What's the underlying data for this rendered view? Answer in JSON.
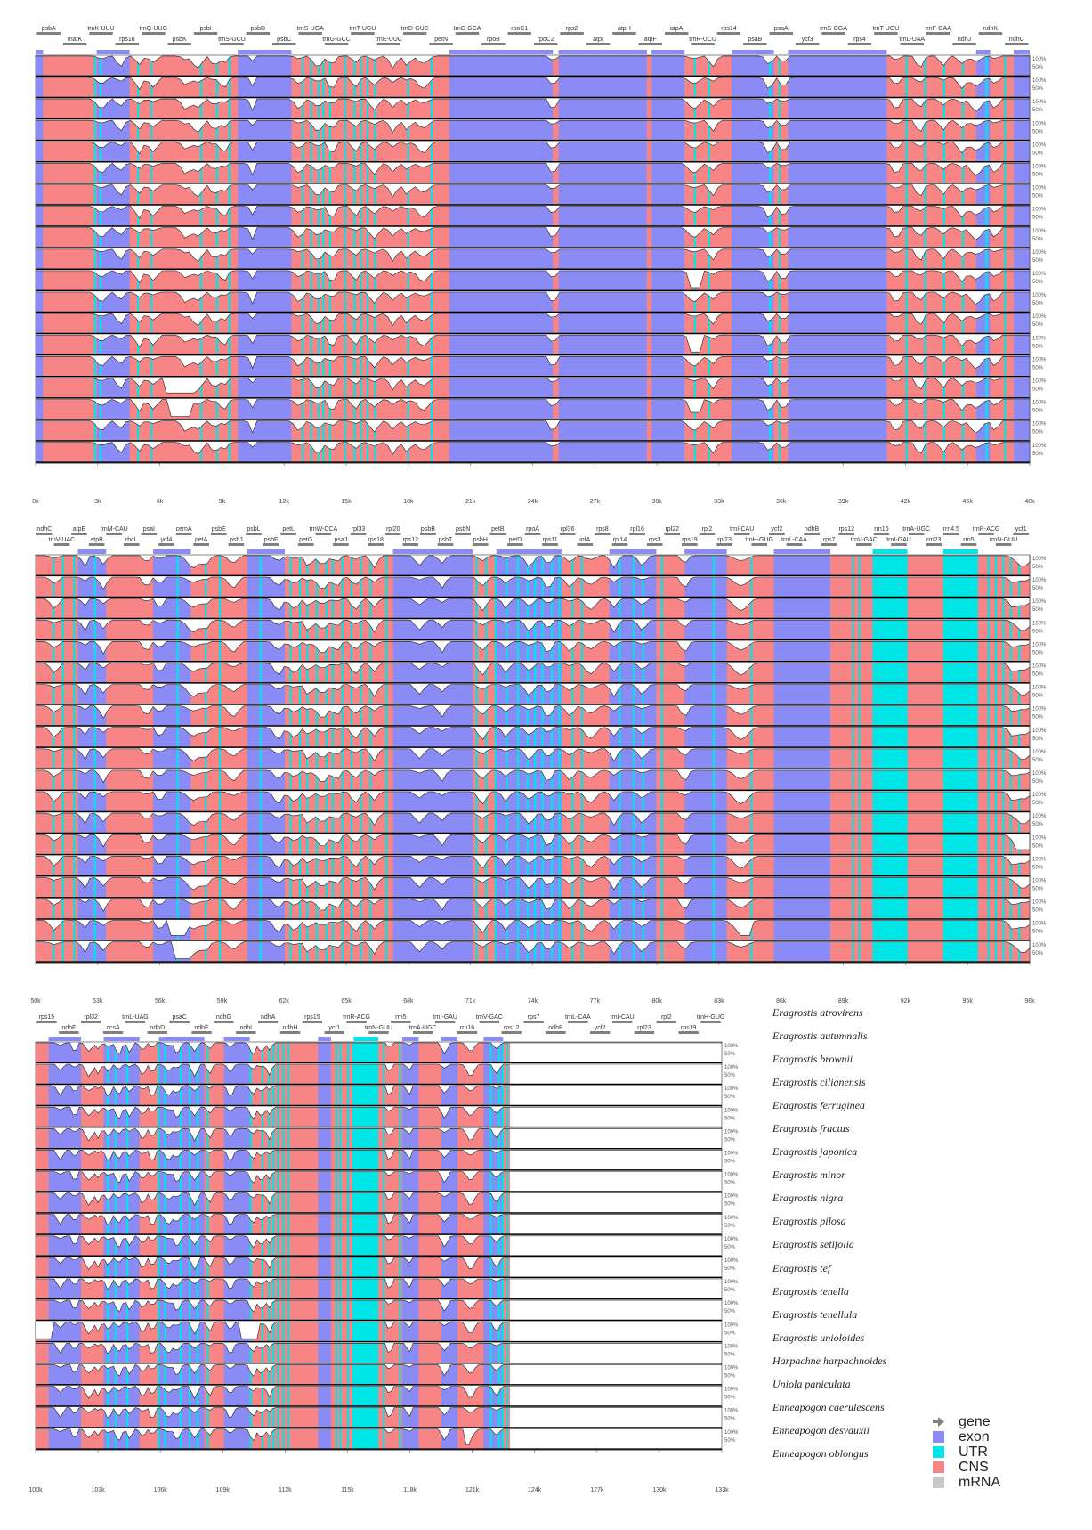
{
  "colors": {
    "exon": "#8b8bf5",
    "utr": "#00e5e5",
    "cns": "#f78585",
    "mrna": "#c8c8c8",
    "gene_arrow": "#808080",
    "line": "#000000",
    "gap": "#ffffff"
  },
  "axis": {
    "y_labels": [
      "100%",
      "50%"
    ]
  },
  "panels": [
    {
      "name": "panel-1",
      "ticks": [
        "0k",
        "3k",
        "6k",
        "9k",
        "12k",
        "15k",
        "18k",
        "21k",
        "24k",
        "27k",
        "30k",
        "33k",
        "36k",
        "39k",
        "42k",
        "45k",
        "48k"
      ],
      "top_genes": [
        "psbA",
        "matK",
        "trnK-UUU",
        "rps16",
        "trnQ-UUG",
        "psbK",
        "psbI",
        "trnS-GCU",
        "psbD",
        "psbC",
        "trnS-UGA",
        "trnG-GCC",
        "trnT-UGU",
        "trnE-UUC",
        "trnD-GUC",
        "petN",
        "trnC-GCA",
        "rpoB",
        "rpoC1",
        "rpoC2",
        "rps2",
        "atpI",
        "atpH",
        "atpF",
        "atpA",
        "trnR-UCU",
        "rps14",
        "psaB",
        "psaA",
        "ycf3",
        "trnS-GGA",
        "rps4",
        "trnT-UGU",
        "trnL-UAA",
        "trnF-GAA",
        "ndhJ",
        "ndhK",
        "ndhC"
      ],
      "regions": [
        [
          "exon",
          0,
          8
        ],
        [
          "cns",
          8,
          65
        ],
        [
          "exon",
          65,
          100
        ],
        [
          "cns",
          100,
          215
        ],
        [
          "exon",
          215,
          272
        ],
        [
          "cns",
          272,
          440
        ],
        [
          "exon",
          440,
          550
        ],
        [
          "cns",
          550,
          556
        ],
        [
          "exon",
          556,
          650
        ],
        [
          "cns",
          650,
          655
        ],
        [
          "exon",
          655,
          690
        ],
        [
          "cns",
          690,
          740
        ],
        [
          "exon",
          740,
          785
        ],
        [
          "cns",
          785,
          800
        ],
        [
          "exon",
          800,
          905
        ],
        [
          "cns",
          905,
          1000
        ],
        [
          "exon",
          1000,
          1015
        ],
        [
          "cns",
          1015,
          1040
        ],
        [
          "exon",
          1040,
          1057
        ]
      ],
      "utr_ticks": [
        62,
        68,
        108,
        122,
        175,
        192,
        205,
        283,
        292,
        300,
        305,
        312,
        328,
        338,
        345,
        352,
        360,
        395,
        420,
        700,
        715,
        780,
        790,
        925,
        945,
        965,
        985,
        1010,
        1030
      ],
      "dips": [
        [
          70,
          7
        ],
        [
          90,
          5
        ],
        [
          110,
          5
        ],
        [
          125,
          6
        ],
        [
          160,
          6
        ],
        [
          172,
          7
        ],
        [
          190,
          5
        ],
        [
          200,
          5
        ],
        [
          230,
          3
        ],
        [
          280,
          6
        ],
        [
          300,
          7
        ],
        [
          315,
          5
        ],
        [
          340,
          5
        ],
        [
          360,
          6
        ],
        [
          380,
          5
        ],
        [
          395,
          5
        ],
        [
          412,
          8
        ],
        [
          550,
          4
        ],
        [
          700,
          8
        ],
        [
          720,
          5
        ],
        [
          780,
          5
        ],
        [
          795,
          5
        ],
        [
          915,
          5
        ],
        [
          940,
          5
        ],
        [
          965,
          5
        ],
        [
          985,
          6
        ],
        [
          1000,
          8
        ],
        [
          1020,
          5
        ]
      ]
    },
    {
      "name": "panel-2",
      "ticks": [
        "50k",
        "53k",
        "56k",
        "59k",
        "62k",
        "65k",
        "68k",
        "71k",
        "74k",
        "77k",
        "80k",
        "83k",
        "86k",
        "89k",
        "92k",
        "95k",
        "98k"
      ],
      "top_genes": [
        "ndhC",
        "trnV-UAC",
        "atpE",
        "atpB",
        "trnM-CAU",
        "rbcL",
        "psaI",
        "ycf4",
        "cemA",
        "petA",
        "psbE",
        "psbJ",
        "psbL",
        "psbF",
        "petL",
        "petG",
        "trnW-CCA",
        "psaJ",
        "rpl33",
        "rps18",
        "rpl20",
        "rps12",
        "psbB",
        "psbT",
        "psbN",
        "psbH",
        "petB",
        "petD",
        "rpoA",
        "rps11",
        "rpl36",
        "infA",
        "rps8",
        "rpl14",
        "rpl16",
        "rps3",
        "rpl22",
        "rps19",
        "rpl2",
        "rpl23",
        "trnI-CAU",
        "trnH-GUG",
        "ycf2",
        "trnL-CAA",
        "ndhB",
        "rps7",
        "rps12",
        "trnV-GAC",
        "rrn16",
        "trnI-GAU",
        "trnA-UGC",
        "rrn23",
        "rrn4.5",
        "rrn5",
        "trnR-ACG",
        "trnN-GUU",
        "ycf1"
      ],
      "regions": [
        [
          "cns",
          0,
          45
        ],
        [
          "exon",
          45,
          75
        ],
        [
          "cns",
          75,
          125
        ],
        [
          "exon",
          125,
          165
        ],
        [
          "cns",
          165,
          225
        ],
        [
          "exon",
          225,
          265
        ],
        [
          "cns",
          265,
          380
        ],
        [
          "exon",
          380,
          465
        ],
        [
          "cns",
          465,
          490
        ],
        [
          "exon",
          490,
          560
        ],
        [
          "cns",
          560,
          610
        ],
        [
          "exon",
          610,
          660
        ],
        [
          "cns",
          660,
          690
        ],
        [
          "exon",
          690,
          735
        ],
        [
          "cns",
          735,
          785
        ],
        [
          "exon",
          785,
          845
        ],
        [
          "cns",
          845,
          890
        ],
        [
          "utr",
          890,
          927
        ],
        [
          "cns",
          927,
          965
        ],
        [
          "utr",
          965,
          1002
        ],
        [
          "cns",
          1002,
          1057
        ]
      ],
      "utr_ticks": [
        18,
        28,
        40,
        62,
        150,
        180,
        195,
        238,
        270,
        280,
        288,
        298,
        308,
        315,
        325,
        335,
        345,
        355,
        372,
        468,
        478,
        488,
        500,
        512,
        522,
        530,
        538,
        548,
        556,
        570,
        580,
        620,
        635,
        645,
        665,
        720,
        760,
        868,
        875,
        1012,
        1020,
        1028,
        1036,
        1045
      ],
      "dips": [
        [
          20,
          6
        ],
        [
          52,
          4
        ],
        [
          72,
          5
        ],
        [
          118,
          5
        ],
        [
          132,
          4
        ],
        [
          168,
          9
        ],
        [
          180,
          6
        ],
        [
          210,
          7
        ],
        [
          258,
          6
        ],
        [
          275,
          7
        ],
        [
          290,
          5
        ],
        [
          305,
          8
        ],
        [
          320,
          5
        ],
        [
          340,
          6
        ],
        [
          360,
          5
        ],
        [
          408,
          6
        ],
        [
          432,
          5
        ],
        [
          475,
          6
        ],
        [
          500,
          5
        ],
        [
          525,
          6
        ],
        [
          545,
          5
        ],
        [
          568,
          6
        ],
        [
          590,
          8
        ],
        [
          615,
          5
        ],
        [
          645,
          6
        ],
        [
          690,
          5
        ],
        [
          750,
          10
        ],
        [
          1040,
          6
        ],
        [
          1050,
          10
        ]
      ]
    },
    {
      "name": "panel-3",
      "ticks": [
        "100k",
        "103k",
        "106k",
        "109k",
        "112k",
        "115k",
        "118k",
        "121k",
        "124k",
        "127k",
        "130k",
        "133k"
      ],
      "top_genes": [
        "rps15",
        "ndhF",
        "rpl32",
        "ccsA",
        "trnL-UAG",
        "ndhD",
        "psaC",
        "ndhE",
        "ndhG",
        "ndhI",
        "ndhA",
        "ndhH",
        "rps15",
        "ycf1",
        "trnR-ACG",
        "trnN-GUU",
        "rrn5",
        "trnA-UGC",
        "trnI-GAU",
        "rrn16",
        "trnV-GAC",
        "rps12",
        "rps7",
        "ndhB",
        "trnL-CAA",
        "ycf2",
        "trnI-CAU",
        "rpl23",
        "rpl2",
        "rps19",
        "trnH-GUG"
      ],
      "regions": [
        [
          "cns",
          0,
          20
        ],
        [
          "exon",
          20,
          70
        ],
        [
          "cns",
          70,
          105
        ],
        [
          "exon",
          105,
          160
        ],
        [
          "cns",
          160,
          190
        ],
        [
          "exon",
          190,
          260
        ],
        [
          "cns",
          260,
          290
        ],
        [
          "exon",
          290,
          330
        ],
        [
          "cns",
          330,
          435
        ],
        [
          "exon",
          435,
          455
        ],
        [
          "cns",
          455,
          490
        ],
        [
          "utr",
          490,
          528
        ],
        [
          "cns",
          528,
          565
        ],
        [
          "exon",
          565,
          590
        ],
        [
          "cns",
          590,
          625
        ],
        [
          "exon",
          625,
          650
        ],
        [
          "cns",
          650,
          690
        ],
        [
          "exon",
          690,
          720
        ],
        [
          "cns",
          720,
          730
        ]
      ],
      "utr_ticks": [
        110,
        122,
        140,
        188,
        198,
        222,
        236,
        248,
        264,
        330,
        348,
        358,
        365,
        372,
        380,
        388,
        462,
        468,
        480,
        488,
        535,
        560,
        700,
        712,
        718,
        725
      ],
      "dips": [
        [
          38,
          6
        ],
        [
          60,
          4
        ],
        [
          82,
          7
        ],
        [
          96,
          5
        ],
        [
          112,
          6
        ],
        [
          128,
          6
        ],
        [
          145,
          5
        ],
        [
          165,
          6
        ],
        [
          180,
          5
        ],
        [
          205,
          8
        ],
        [
          218,
          6
        ],
        [
          245,
          6
        ],
        [
          268,
          5
        ],
        [
          300,
          6
        ],
        [
          335,
          6
        ],
        [
          348,
          5
        ],
        [
          360,
          5
        ],
        [
          545,
          4
        ],
        [
          575,
          4
        ],
        [
          630,
          6
        ],
        [
          670,
          8
        ],
        [
          710,
          6
        ]
      ]
    }
  ],
  "species": [
    "Eragrostis atrovirens",
    "Eragrostis autumnalis",
    "Eragrostis brownii",
    "Eragrostis cilianensis",
    "Eragrostis ferruginea",
    "Eragrostis fractus",
    "Eragrostis japonica",
    "Eragrostis minor",
    "Eragrostis nigra",
    "Eragrostis pilosa",
    "Eragrostis setifolia",
    "Eragrostis tef",
    "Eragrostis tenella",
    "Eragrostis tenellula",
    "Eragrostis unioloides",
    "Harpachne harpachnoides",
    "Uniola paniculata",
    "Enneapogon caerulescens",
    "Enneapogon desvauxii",
    "Enneapogon oblongus"
  ],
  "legend": [
    {
      "key": "gene",
      "label": "gene"
    },
    {
      "key": "exon",
      "label": "exon"
    },
    {
      "key": "utr",
      "label": "UTR"
    },
    {
      "key": "cns",
      "label": "CNS"
    },
    {
      "key": "mrna",
      "label": "mRNA"
    }
  ],
  "special_gaps": [
    {
      "panel": 0,
      "track": 15,
      "from": 135,
      "to": 170,
      "depth": 0.8
    },
    {
      "panel": 0,
      "track": 16,
      "from": 140,
      "to": 165,
      "depth": 0.9
    },
    {
      "panel": 0,
      "track": 10,
      "from": 695,
      "to": 710,
      "depth": 0.9
    },
    {
      "panel": 0,
      "track": 13,
      "from": 695,
      "to": 710,
      "depth": 0.9
    },
    {
      "panel": 0,
      "track": 16,
      "from": 695,
      "to": 710,
      "depth": 0.7
    },
    {
      "panel": 1,
      "track": 17,
      "from": 140,
      "to": 160,
      "depth": 0.8
    },
    {
      "panel": 1,
      "track": 18,
      "from": 148,
      "to": 165,
      "depth": 0.9
    },
    {
      "panel": 1,
      "track": 17,
      "from": 745,
      "to": 760,
      "depth": 0.8
    },
    {
      "panel": 1,
      "track": 13,
      "from": 1042,
      "to": 1057,
      "depth": 0.8
    },
    {
      "panel": 2,
      "track": 13,
      "from": 0,
      "to": 28,
      "depth": 0.9
    },
    {
      "panel": 2,
      "track": 13,
      "from": 315,
      "to": 345,
      "depth": 0.9
    },
    {
      "panel": 2,
      "track": 18,
      "from": 660,
      "to": 672,
      "depth": 0.8
    }
  ]
}
